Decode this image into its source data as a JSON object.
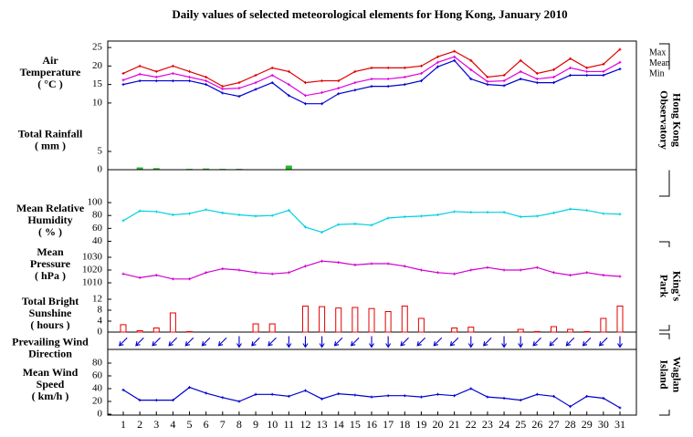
{
  "title": "Daily values of selected meteorological elements for Hong Kong, January 2010",
  "stations": [
    {
      "label": [
        "Hong Kong",
        "Observatory"
      ]
    },
    {
      "label": [
        "King's",
        "Park"
      ]
    },
    {
      "label": [
        "Waglan",
        "Island"
      ]
    }
  ],
  "chart_data": [
    {
      "type": "line",
      "label": [
        "Air",
        "Temperature",
        "( °C )"
      ],
      "ylim": [
        8,
        26.5
      ],
      "yticks": [
        10,
        15,
        20,
        25
      ],
      "series": [
        {
          "name": "Max",
          "color": "#e00000",
          "values": [
            18,
            20,
            18.5,
            20,
            18.5,
            17,
            14.5,
            15.5,
            17.5,
            19.5,
            18.5,
            15.5,
            16,
            16,
            18.5,
            19.5,
            19.5,
            19.5,
            20,
            22.5,
            24,
            21.5,
            17,
            17.5,
            21.5,
            18,
            19,
            22,
            19.5,
            20.5,
            24.5
          ]
        },
        {
          "name": "Mean",
          "color": "#e000e0",
          "values": [
            16.2,
            17.8,
            17,
            18,
            17,
            16,
            13.8,
            14,
            15.5,
            17.5,
            15,
            12,
            12.8,
            14,
            15.5,
            16.5,
            16.5,
            17,
            18,
            21,
            22.5,
            19,
            15.8,
            16,
            18.5,
            16.5,
            17,
            19.5,
            18.5,
            18.5,
            21
          ]
        },
        {
          "name": "Min",
          "color": "#0000d0",
          "values": [
            15,
            16,
            16,
            16,
            16,
            15,
            12.7,
            11.8,
            13.7,
            15.5,
            12,
            9.8,
            9.8,
            12.5,
            13.5,
            14.5,
            14.5,
            15,
            16,
            19.8,
            21.5,
            16.5,
            15,
            14.7,
            16.5,
            15.5,
            15.5,
            17.5,
            17.5,
            17.5,
            19.2
          ]
        }
      ]
    },
    {
      "type": "bar",
      "label": [
        "Total Rainfall",
        "( mm )"
      ],
      "ylim": [
        0,
        12
      ],
      "yticks": [
        0,
        5
      ],
      "color": "#22bb22",
      "outline": false,
      "values": [
        0,
        0.5,
        0.3,
        0,
        0.1,
        0.2,
        0.1,
        0.1,
        0,
        0,
        1.0,
        0,
        0,
        0,
        0,
        0,
        0,
        0,
        0,
        0,
        0,
        0,
        0,
        0,
        0,
        0,
        0,
        0,
        0,
        0,
        0
      ]
    },
    {
      "type": "line",
      "label": [
        "Mean Relative",
        "Humidity",
        "( % )"
      ],
      "ylim": [
        35,
        110
      ],
      "yticks": [
        40,
        60,
        80,
        100
      ],
      "series": [
        {
          "color": "#00d0e0",
          "values": [
            72,
            87,
            86,
            81,
            83,
            89,
            84,
            81,
            79,
            80,
            88,
            62,
            54,
            66,
            67,
            65,
            76,
            78,
            79,
            81,
            86,
            85,
            85,
            85,
            78,
            79,
            84,
            90,
            88,
            83,
            82
          ]
        }
      ]
    },
    {
      "type": "line",
      "label": [
        "Mean",
        "Pressure",
        "( hPa )"
      ],
      "ylim": [
        1005,
        1035
      ],
      "yticks": [
        1010,
        1020,
        1030
      ],
      "series": [
        {
          "color": "#d000d0",
          "values": [
            1017,
            1014,
            1016,
            1013,
            1013,
            1018,
            1021,
            1020,
            1018,
            1017,
            1018,
            1023,
            1027,
            1026,
            1024,
            1025,
            1025,
            1023,
            1020,
            1018,
            1017,
            1020,
            1022,
            1020,
            1020,
            1022,
            1018,
            1016,
            1018,
            1016,
            1015
          ]
        }
      ]
    },
    {
      "type": "bar",
      "label": [
        "Total Bright",
        "Sunshine",
        "( hours )"
      ],
      "ylim": [
        0,
        13
      ],
      "yticks": [
        0,
        4,
        8,
        12
      ],
      "color": "#e00000",
      "outline": true,
      "values": [
        2.7,
        0.5,
        1.5,
        7.0,
        0.2,
        0,
        0,
        0,
        3.0,
        3.0,
        0,
        9.5,
        9.3,
        8.8,
        9.0,
        8.6,
        7.5,
        9.5,
        5.0,
        0,
        1.5,
        1.8,
        0,
        0,
        1.0,
        0.2,
        2.0,
        1.0,
        0.2,
        5.0,
        9.5
      ]
    },
    {
      "type": "arrow",
      "label": [
        "Prevailing Wind",
        "Direction"
      ],
      "color": "#0000d0",
      "values": [
        45,
        45,
        45,
        45,
        45,
        45,
        45,
        360,
        45,
        45,
        360,
        360,
        360,
        45,
        45,
        360,
        360,
        45,
        45,
        45,
        45,
        360,
        45,
        360,
        360,
        45,
        45,
        45,
        45,
        45,
        360
      ]
    },
    {
      "type": "line",
      "label": [
        "Mean Wind",
        "Speed",
        "( km/h )"
      ],
      "ylim": [
        0,
        90
      ],
      "yticks": [
        0,
        20,
        40,
        60,
        80
      ],
      "categories": [
        "1",
        "2",
        "3",
        "4",
        "5",
        "6",
        "7",
        "8",
        "9",
        "10",
        "11",
        "12",
        "13",
        "14",
        "15",
        "16",
        "17",
        "18",
        "19",
        "20",
        "21",
        "22",
        "23",
        "24",
        "25",
        "26",
        "27",
        "28",
        "29",
        "30",
        "31"
      ],
      "series": [
        {
          "color": "#0000d0",
          "values": [
            38,
            22,
            22,
            22,
            42,
            33,
            26,
            20,
            31,
            31,
            28,
            37,
            24,
            32,
            30,
            27,
            29,
            29,
            27,
            31,
            29,
            40,
            27,
            25,
            22,
            31,
            28,
            12,
            28,
            25,
            10
          ]
        }
      ]
    }
  ]
}
